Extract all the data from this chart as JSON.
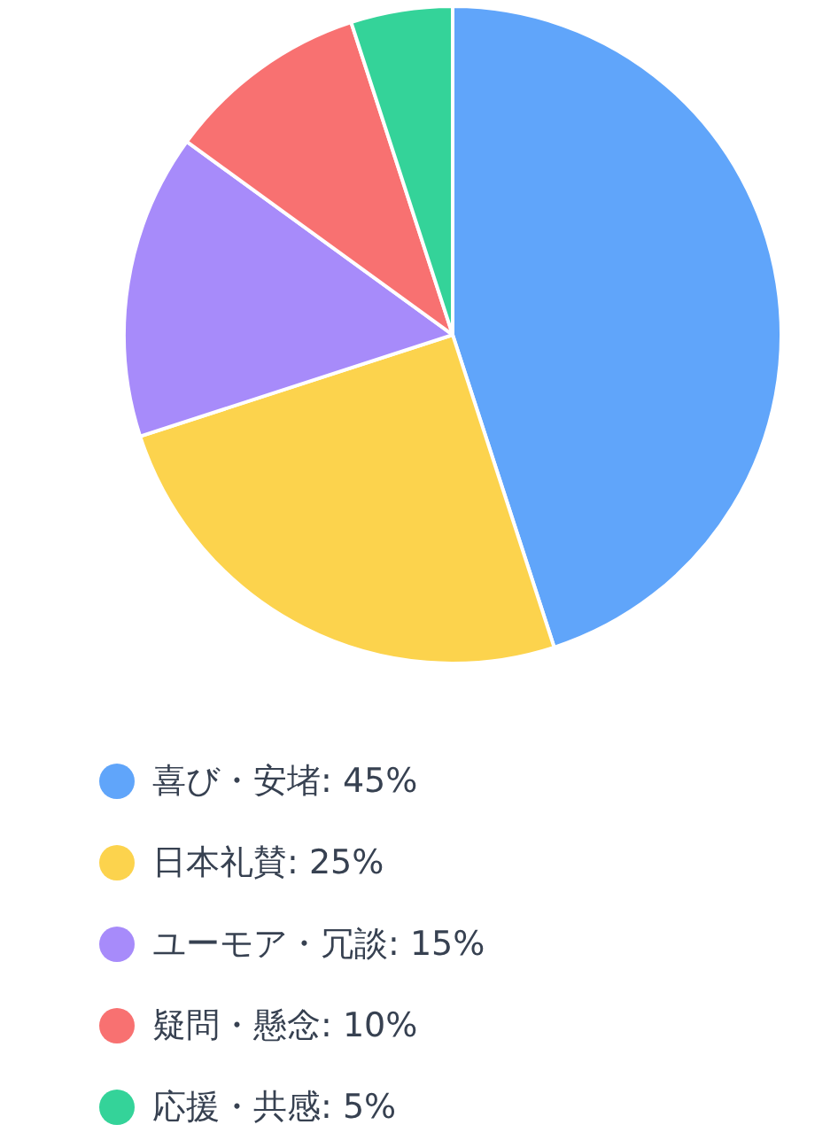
{
  "chart_data": {
    "type": "pie",
    "categories": [
      "喜び・安堵: 45%",
      "日本礼賛: 25%",
      "ユーモア・冗談: 15%",
      "疑問・懸念: 10%",
      "応援・共感: 5%"
    ],
    "values": [
      45,
      25,
      15,
      10,
      5
    ],
    "colors": [
      "#60a5fa",
      "#fcd34d",
      "#a78bfa",
      "#f87171",
      "#34d399"
    ],
    "legend": "bottom"
  }
}
